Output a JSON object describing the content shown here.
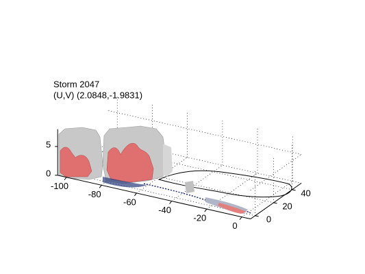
{
  "chart_data": {
    "type": "isosurface3d",
    "title": "Storm 2047",
    "subtitle": "(U,V) (2.0848,-1.9831)",
    "xlim": [
      -105,
      5
    ],
    "ylim": [
      -5,
      50
    ],
    "zlim": [
      0,
      8
    ],
    "xticks": [
      -100,
      -80,
      -60,
      -40,
      -20,
      0
    ],
    "yticks": [
      0,
      20,
      40
    ],
    "zticks": [
      0,
      5
    ],
    "grid": true
  }
}
